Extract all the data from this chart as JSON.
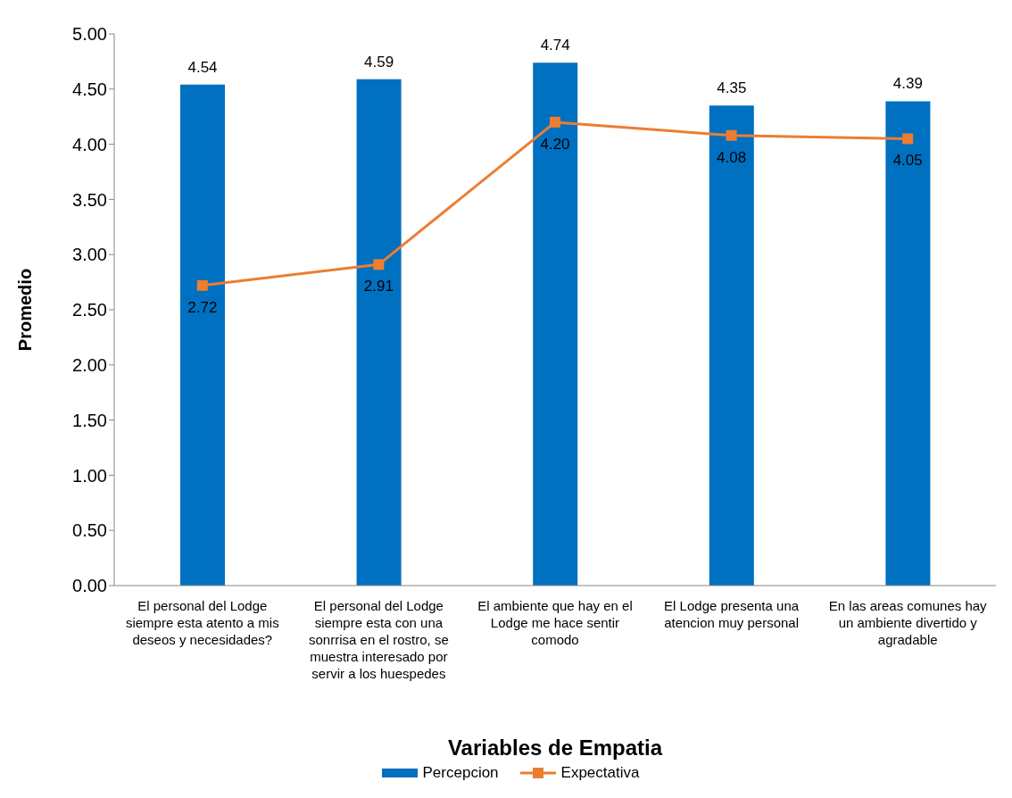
{
  "chart_data": {
    "type": "bar",
    "xlabel": "Variables de Empatia",
    "ylabel": "Promedio",
    "categories": [
      "El personal del Lodge siempre esta atento a mis deseos y necesidades?",
      "El personal del Lodge siempre esta con una sonrrisa en el rostro, se muestra interesado por servir a los huespedes",
      "El ambiente que hay en el Lodge me hace sentir comodo",
      "El Lodge presenta una atencion muy personal",
      "En las areas comunes hay un ambiente divertido y agradable"
    ],
    "series": [
      {
        "name": "Percepcion",
        "color": "#0070c0",
        "values": [
          4.54,
          4.59,
          4.74,
          4.35,
          4.39
        ],
        "value_labels": [
          "4.54",
          "4.59",
          "4.74",
          "4.35",
          "4.39"
        ]
      },
      {
        "name": "Expectativa",
        "type": "line",
        "color": "#ed7d31",
        "marker": "square",
        "values": [
          2.72,
          2.91,
          4.2,
          4.08,
          4.05
        ],
        "value_labels": [
          "2.72",
          "2.91",
          "4.20",
          "4.08",
          "4.05"
        ]
      }
    ],
    "ylim": [
      0,
      5
    ],
    "yticks": [
      {
        "value": 0,
        "label": "0.00"
      },
      {
        "value": 0.5,
        "label": "0.50"
      },
      {
        "value": 1,
        "label": "1.00"
      },
      {
        "value": 1.5,
        "label": "1.50"
      },
      {
        "value": 2,
        "label": "2.00"
      },
      {
        "value": 2.5,
        "label": "2.50"
      },
      {
        "value": 3,
        "label": "3.00"
      },
      {
        "value": 3.5,
        "label": "3.50"
      },
      {
        "value": 4,
        "label": "4.00"
      },
      {
        "value": 4.5,
        "label": "4.50"
      },
      {
        "value": 5,
        "label": "5.00"
      }
    ],
    "grid": false,
    "legend": "bottom"
  }
}
